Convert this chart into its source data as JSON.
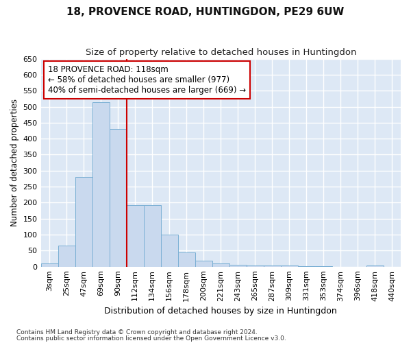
{
  "title": "18, PROVENCE ROAD, HUNTINGDON, PE29 6UW",
  "subtitle": "Size of property relative to detached houses in Huntingdon",
  "xlabel": "Distribution of detached houses by size in Huntingdon",
  "ylabel": "Number of detached properties",
  "categories": [
    "3sqm",
    "25sqm",
    "47sqm",
    "69sqm",
    "90sqm",
    "112sqm",
    "134sqm",
    "156sqm",
    "178sqm",
    "200sqm",
    "221sqm",
    "243sqm",
    "265sqm",
    "287sqm",
    "309sqm",
    "331sqm",
    "353sqm",
    "374sqm",
    "396sqm",
    "418sqm",
    "440sqm"
  ],
  "values": [
    10,
    65,
    280,
    513,
    430,
    192,
    192,
    100,
    45,
    18,
    10,
    5,
    4,
    4,
    3,
    2,
    2,
    0,
    0,
    3,
    0
  ],
  "bar_color": "#c9d9ee",
  "bar_edge_color": "#7aafd4",
  "background_color": "#dde8f5",
  "grid_color": "#ffffff",
  "vline_x_index": 5,
  "vline_color": "#cc0000",
  "annotation_text": "18 PROVENCE ROAD: 118sqm\n← 58% of detached houses are smaller (977)\n40% of semi-detached houses are larger (669) →",
  "annotation_box_facecolor": "#ffffff",
  "annotation_box_edgecolor": "#cc0000",
  "ylim": [
    0,
    650
  ],
  "yticks": [
    0,
    50,
    100,
    150,
    200,
    250,
    300,
    350,
    400,
    450,
    500,
    550,
    600,
    650
  ],
  "footnote1": "Contains HM Land Registry data © Crown copyright and database right 2024.",
  "footnote2": "Contains public sector information licensed under the Open Government Licence v3.0.",
  "title_fontsize": 11,
  "subtitle_fontsize": 9.5,
  "xlabel_fontsize": 9,
  "ylabel_fontsize": 8.5,
  "tick_fontsize": 8,
  "annotation_fontsize": 8.5,
  "footnote_fontsize": 6.5,
  "fig_facecolor": "#ffffff"
}
